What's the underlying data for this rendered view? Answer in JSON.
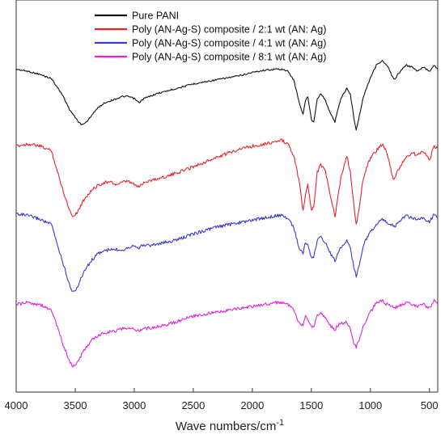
{
  "chart_data": {
    "type": "line",
    "title": "",
    "xlabel": "Wave numbers/cm",
    "xlabel_superscript": "-1",
    "ylabel": "",
    "xlim": [
      4000,
      430
    ],
    "x_reversed": true,
    "x_ticks": [
      4000,
      3500,
      3000,
      2500,
      2000,
      1500,
      1000,
      500
    ],
    "x_tick_labels": [
      "4000",
      "3500",
      "3000",
      "2500",
      "2000",
      "1500",
      "1000",
      "500"
    ],
    "y_axis": "none",
    "grid": false,
    "legend_position": "top",
    "series": [
      {
        "name": "Pure PANI",
        "color": "#111111",
        "points": [
          [
            4000,
            0.88
          ],
          [
            3900,
            0.86
          ],
          [
            3800,
            0.83
          ],
          [
            3700,
            0.79
          ],
          [
            3600,
            0.62
          ],
          [
            3550,
            0.5
          ],
          [
            3500,
            0.42
          ],
          [
            3450,
            0.35
          ],
          [
            3400,
            0.38
          ],
          [
            3350,
            0.46
          ],
          [
            3300,
            0.52
          ],
          [
            3250,
            0.56
          ],
          [
            3200,
            0.58
          ],
          [
            3150,
            0.6
          ],
          [
            3100,
            0.62
          ],
          [
            3050,
            0.62
          ],
          [
            3000,
            0.6
          ],
          [
            2960,
            0.56
          ],
          [
            2920,
            0.6
          ],
          [
            2850,
            0.63
          ],
          [
            2800,
            0.65
          ],
          [
            2700,
            0.68
          ],
          [
            2600,
            0.71
          ],
          [
            2500,
            0.74
          ],
          [
            2400,
            0.76
          ],
          [
            2300,
            0.78
          ],
          [
            2200,
            0.8
          ],
          [
            2100,
            0.82
          ],
          [
            2000,
            0.85
          ],
          [
            1900,
            0.87
          ],
          [
            1800,
            0.88
          ],
          [
            1750,
            0.88
          ],
          [
            1700,
            0.86
          ],
          [
            1650,
            0.78
          ],
          [
            1600,
            0.55
          ],
          [
            1570,
            0.45
          ],
          [
            1550,
            0.58
          ],
          [
            1530,
            0.62
          ],
          [
            1500,
            0.4
          ],
          [
            1480,
            0.38
          ],
          [
            1450,
            0.6
          ],
          [
            1420,
            0.65
          ],
          [
            1380,
            0.58
          ],
          [
            1340,
            0.46
          ],
          [
            1300,
            0.38
          ],
          [
            1280,
            0.48
          ],
          [
            1250,
            0.6
          ],
          [
            1200,
            0.7
          ],
          [
            1170,
            0.64
          ],
          [
            1140,
            0.42
          ],
          [
            1120,
            0.3
          ],
          [
            1100,
            0.4
          ],
          [
            1060,
            0.62
          ],
          [
            1000,
            0.8
          ],
          [
            950,
            0.92
          ],
          [
            900,
            0.96
          ],
          [
            850,
            0.9
          ],
          [
            820,
            0.82
          ],
          [
            800,
            0.78
          ],
          [
            760,
            0.84
          ],
          [
            700,
            0.92
          ],
          [
            650,
            0.9
          ],
          [
            600,
            0.86
          ],
          [
            550,
            0.9
          ],
          [
            500,
            0.86
          ],
          [
            460,
            0.92
          ],
          [
            430,
            0.88
          ]
        ]
      },
      {
        "name": "Poly (AN-Ag-S) composite / 2:1 wt (AN: Ag)",
        "color": "#e8232a",
        "points": [
          [
            4000,
            0.78
          ],
          [
            3900,
            0.8
          ],
          [
            3800,
            0.78
          ],
          [
            3700,
            0.74
          ],
          [
            3650,
            0.55
          ],
          [
            3600,
            0.38
          ],
          [
            3550,
            0.22
          ],
          [
            3520,
            0.16
          ],
          [
            3480,
            0.2
          ],
          [
            3420,
            0.32
          ],
          [
            3350,
            0.4
          ],
          [
            3300,
            0.44
          ],
          [
            3250,
            0.46
          ],
          [
            3200,
            0.46
          ],
          [
            3150,
            0.44
          ],
          [
            3100,
            0.46
          ],
          [
            3050,
            0.47
          ],
          [
            3000,
            0.44
          ],
          [
            2960,
            0.42
          ],
          [
            2920,
            0.46
          ],
          [
            2850,
            0.48
          ],
          [
            2700,
            0.52
          ],
          [
            2600,
            0.56
          ],
          [
            2500,
            0.6
          ],
          [
            2400,
            0.64
          ],
          [
            2300,
            0.68
          ],
          [
            2200,
            0.72
          ],
          [
            2100,
            0.76
          ],
          [
            2000,
            0.78
          ],
          [
            1900,
            0.8
          ],
          [
            1800,
            0.82
          ],
          [
            1750,
            0.83
          ],
          [
            1700,
            0.8
          ],
          [
            1650,
            0.7
          ],
          [
            1600,
            0.45
          ],
          [
            1570,
            0.2
          ],
          [
            1550,
            0.35
          ],
          [
            1530,
            0.45
          ],
          [
            1500,
            0.22
          ],
          [
            1480,
            0.25
          ],
          [
            1450,
            0.55
          ],
          [
            1420,
            0.62
          ],
          [
            1380,
            0.55
          ],
          [
            1340,
            0.35
          ],
          [
            1300,
            0.15
          ],
          [
            1280,
            0.3
          ],
          [
            1250,
            0.5
          ],
          [
            1200,
            0.7
          ],
          [
            1170,
            0.55
          ],
          [
            1140,
            0.25
          ],
          [
            1120,
            0.08
          ],
          [
            1100,
            0.2
          ],
          [
            1060,
            0.5
          ],
          [
            1000,
            0.68
          ],
          [
            950,
            0.74
          ],
          [
            900,
            0.8
          ],
          [
            860,
            0.72
          ],
          [
            820,
            0.54
          ],
          [
            800,
            0.48
          ],
          [
            760,
            0.58
          ],
          [
            700,
            0.68
          ],
          [
            650,
            0.72
          ],
          [
            600,
            0.7
          ],
          [
            550,
            0.74
          ],
          [
            500,
            0.66
          ],
          [
            460,
            0.78
          ],
          [
            430,
            0.76
          ]
        ]
      },
      {
        "name": "Poly (AN-Ag-S) composite / 4:1 wt (AN: Ag)",
        "color": "#3a3ad0",
        "points": [
          [
            4000,
            0.9
          ],
          [
            3900,
            0.88
          ],
          [
            3800,
            0.85
          ],
          [
            3700,
            0.8
          ],
          [
            3650,
            0.62
          ],
          [
            3600,
            0.45
          ],
          [
            3550,
            0.28
          ],
          [
            3520,
            0.2
          ],
          [
            3480,
            0.25
          ],
          [
            3420,
            0.4
          ],
          [
            3350,
            0.5
          ],
          [
            3300,
            0.55
          ],
          [
            3250,
            0.57
          ],
          [
            3200,
            0.58
          ],
          [
            3150,
            0.58
          ],
          [
            3100,
            0.58
          ],
          [
            3050,
            0.6
          ],
          [
            3000,
            0.62
          ],
          [
            2960,
            0.6
          ],
          [
            2920,
            0.62
          ],
          [
            2850,
            0.62
          ],
          [
            2700,
            0.65
          ],
          [
            2600,
            0.68
          ],
          [
            2500,
            0.72
          ],
          [
            2400,
            0.75
          ],
          [
            2300,
            0.78
          ],
          [
            2200,
            0.8
          ],
          [
            2100,
            0.82
          ],
          [
            2000,
            0.84
          ],
          [
            1900,
            0.86
          ],
          [
            1800,
            0.88
          ],
          [
            1750,
            0.88
          ],
          [
            1700,
            0.86
          ],
          [
            1650,
            0.78
          ],
          [
            1600,
            0.58
          ],
          [
            1570,
            0.55
          ],
          [
            1550,
            0.65
          ],
          [
            1530,
            0.62
          ],
          [
            1500,
            0.5
          ],
          [
            1480,
            0.52
          ],
          [
            1450,
            0.66
          ],
          [
            1420,
            0.7
          ],
          [
            1380,
            0.64
          ],
          [
            1340,
            0.55
          ],
          [
            1300,
            0.48
          ],
          [
            1280,
            0.54
          ],
          [
            1250,
            0.6
          ],
          [
            1200,
            0.66
          ],
          [
            1170,
            0.6
          ],
          [
            1140,
            0.42
          ],
          [
            1120,
            0.35
          ],
          [
            1100,
            0.42
          ],
          [
            1060,
            0.62
          ],
          [
            1000,
            0.74
          ],
          [
            950,
            0.8
          ],
          [
            900,
            0.85
          ],
          [
            860,
            0.82
          ],
          [
            820,
            0.8
          ],
          [
            800,
            0.78
          ],
          [
            760,
            0.82
          ],
          [
            700,
            0.88
          ],
          [
            650,
            0.86
          ],
          [
            600,
            0.84
          ],
          [
            550,
            0.86
          ],
          [
            500,
            0.82
          ],
          [
            460,
            0.9
          ],
          [
            430,
            0.86
          ]
        ]
      },
      {
        "name": "Poly (AN-Ag-S) composite / 8:1 wt (AN: Ag)",
        "color": "#e024e0",
        "points": [
          [
            4000,
            0.82
          ],
          [
            3900,
            0.84
          ],
          [
            3800,
            0.82
          ],
          [
            3700,
            0.76
          ],
          [
            3650,
            0.58
          ],
          [
            3600,
            0.4
          ],
          [
            3550,
            0.24
          ],
          [
            3520,
            0.18
          ],
          [
            3480,
            0.22
          ],
          [
            3420,
            0.36
          ],
          [
            3350,
            0.46
          ],
          [
            3300,
            0.5
          ],
          [
            3250,
            0.53
          ],
          [
            3200,
            0.54
          ],
          [
            3150,
            0.55
          ],
          [
            3100,
            0.57
          ],
          [
            3050,
            0.58
          ],
          [
            3000,
            0.56
          ],
          [
            2960,
            0.55
          ],
          [
            2920,
            0.57
          ],
          [
            2850,
            0.58
          ],
          [
            2700,
            0.62
          ],
          [
            2600,
            0.66
          ],
          [
            2500,
            0.7
          ],
          [
            2400,
            0.72
          ],
          [
            2300,
            0.74
          ],
          [
            2200,
            0.76
          ],
          [
            2100,
            0.78
          ],
          [
            2000,
            0.8
          ],
          [
            1900,
            0.82
          ],
          [
            1800,
            0.84
          ],
          [
            1750,
            0.84
          ],
          [
            1700,
            0.82
          ],
          [
            1650,
            0.76
          ],
          [
            1600,
            0.62
          ],
          [
            1570,
            0.6
          ],
          [
            1550,
            0.7
          ],
          [
            1530,
            0.66
          ],
          [
            1500,
            0.58
          ],
          [
            1480,
            0.6
          ],
          [
            1450,
            0.7
          ],
          [
            1420,
            0.74
          ],
          [
            1380,
            0.68
          ],
          [
            1340,
            0.6
          ],
          [
            1300,
            0.56
          ],
          [
            1280,
            0.6
          ],
          [
            1250,
            0.62
          ],
          [
            1200,
            0.64
          ],
          [
            1170,
            0.58
          ],
          [
            1140,
            0.42
          ],
          [
            1120,
            0.38
          ],
          [
            1100,
            0.44
          ],
          [
            1060,
            0.6
          ],
          [
            1000,
            0.74
          ],
          [
            950,
            0.84
          ],
          [
            900,
            0.86
          ],
          [
            860,
            0.82
          ],
          [
            820,
            0.8
          ],
          [
            800,
            0.78
          ],
          [
            760,
            0.8
          ],
          [
            700,
            0.84
          ],
          [
            650,
            0.82
          ],
          [
            600,
            0.8
          ],
          [
            550,
            0.82
          ],
          [
            500,
            0.78
          ],
          [
            460,
            0.86
          ],
          [
            430,
            0.82
          ]
        ]
      }
    ]
  }
}
